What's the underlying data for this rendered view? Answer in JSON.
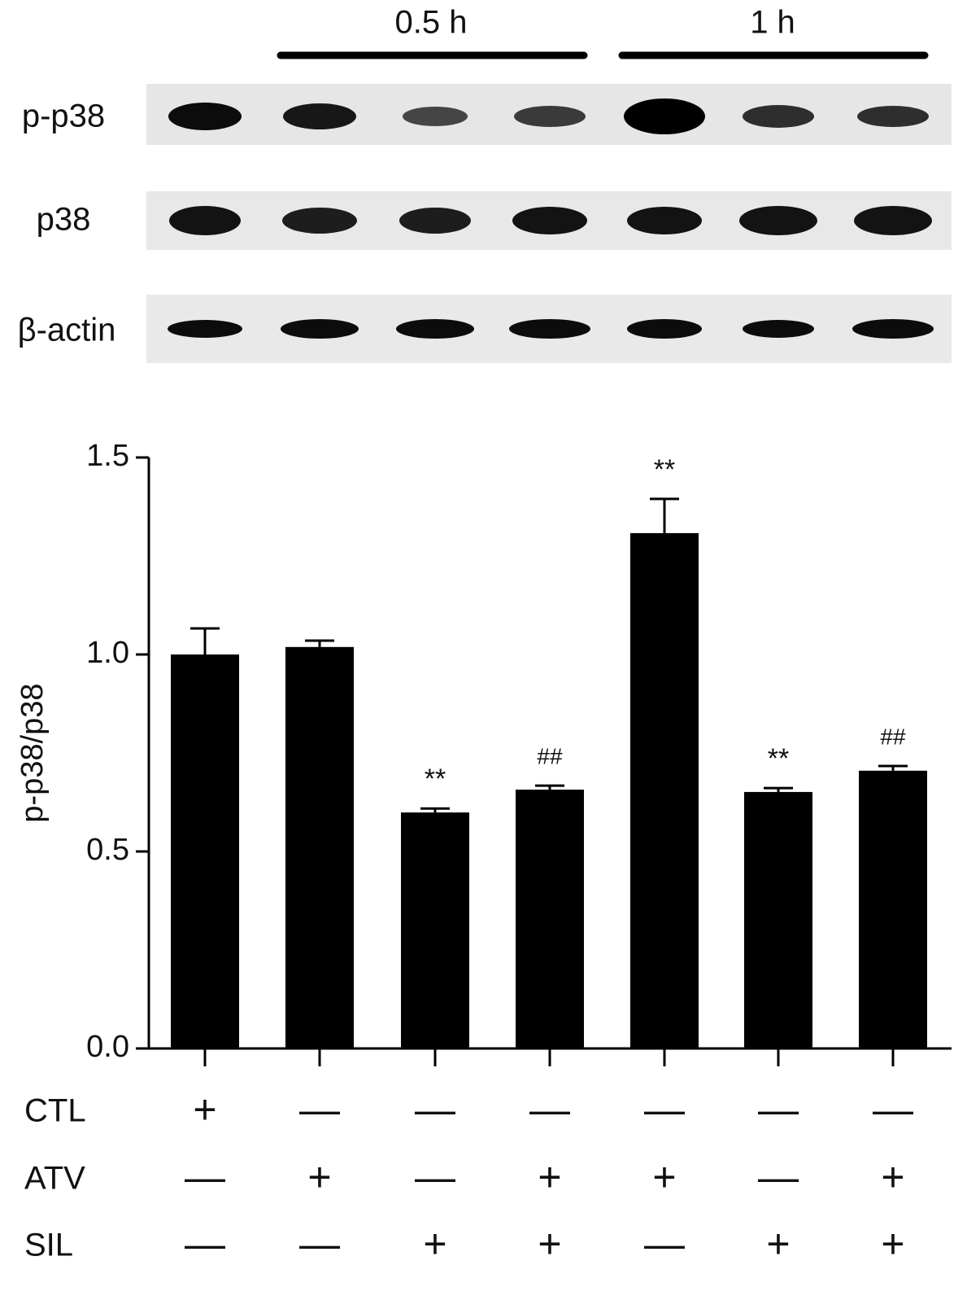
{
  "blot": {
    "time_groups": [
      "0.5 h",
      "1 h"
    ],
    "rows": [
      "p-p38",
      "p38",
      "β-actin"
    ]
  },
  "chart_data": {
    "type": "bar",
    "y_label": "p-p38/p38",
    "values": [
      1.0,
      1.019,
      0.599,
      0.657,
      1.308,
      0.651,
      0.705
    ],
    "errors": [
      0.066,
      0.016,
      0.01,
      0.01,
      0.087,
      0.01,
      0.012
    ],
    "annotations": [
      null,
      null,
      "**",
      "##",
      "**",
      "**",
      "##"
    ],
    "color": "#000000",
    "ylim": [
      0,
      1.5
    ],
    "yticks": [
      {
        "value": 0,
        "label": "0.0"
      },
      0.5,
      {
        "value": 1,
        "label": "1.0"
      },
      1.5
    ],
    "treatments": [
      {
        "name": "CTL",
        "signs": [
          "+",
          "—",
          "—",
          "—",
          "—",
          "—",
          "—"
        ]
      },
      {
        "name": "ATV",
        "signs": [
          "—",
          "+",
          "—",
          "+",
          "+",
          "—",
          "+"
        ]
      },
      {
        "name": "SIL",
        "signs": [
          "—",
          "—",
          "+",
          "+",
          "—",
          "+",
          "+"
        ]
      }
    ]
  }
}
